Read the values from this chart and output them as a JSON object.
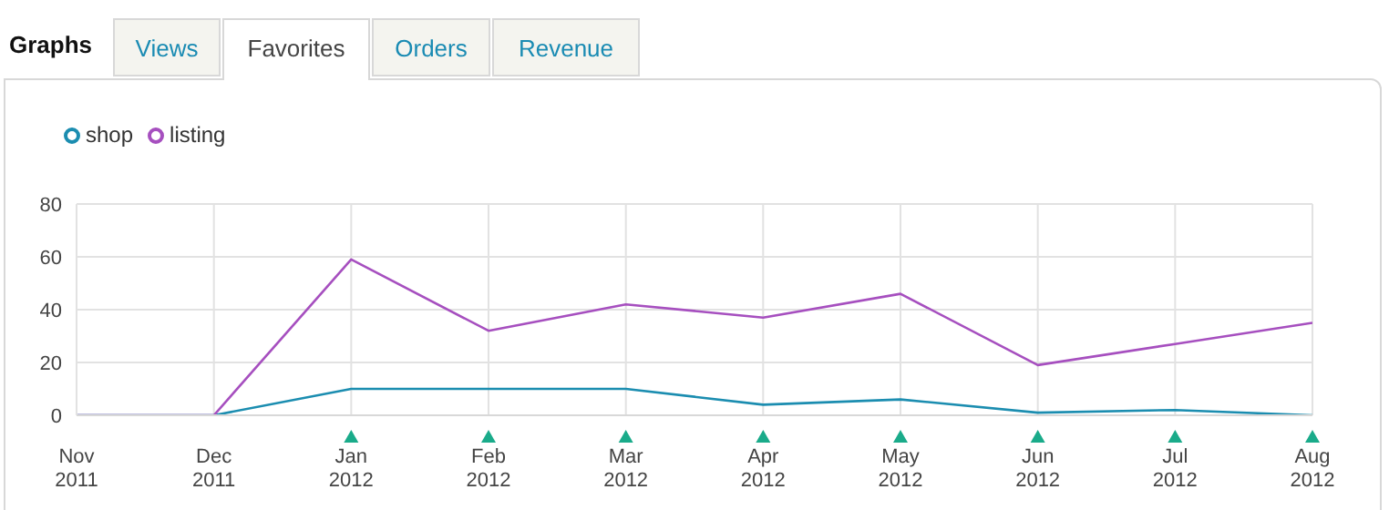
{
  "chart_data": {
    "type": "line",
    "title": "Graphs",
    "annotations": [
      "Views",
      "Favorites",
      "Orders",
      "Revenue"
    ],
    "categories": [
      "Nov 2011",
      "Dec 2011",
      "Jan 2012",
      "Feb 2012",
      "Mar 2012",
      "Apr 2012",
      "May 2012",
      "Jun 2012",
      "Jul 2012",
      "Aug 2012"
    ],
    "series": [
      {
        "name": "shop",
        "color": "#1b8db0",
        "values": [
          0,
          0,
          10,
          10,
          10,
          4,
          6,
          1,
          2,
          0
        ]
      },
      {
        "name": "listing",
        "color": "#a64fbf",
        "values": [
          0,
          0,
          59,
          32,
          42,
          37,
          46,
          19,
          27,
          35
        ]
      }
    ],
    "ylim": [
      0,
      80
    ],
    "yticks": [
      0,
      20,
      40,
      60,
      80
    ],
    "grid": true,
    "legend": "top left",
    "marker": "none",
    "line_style": "solid"
  }
}
